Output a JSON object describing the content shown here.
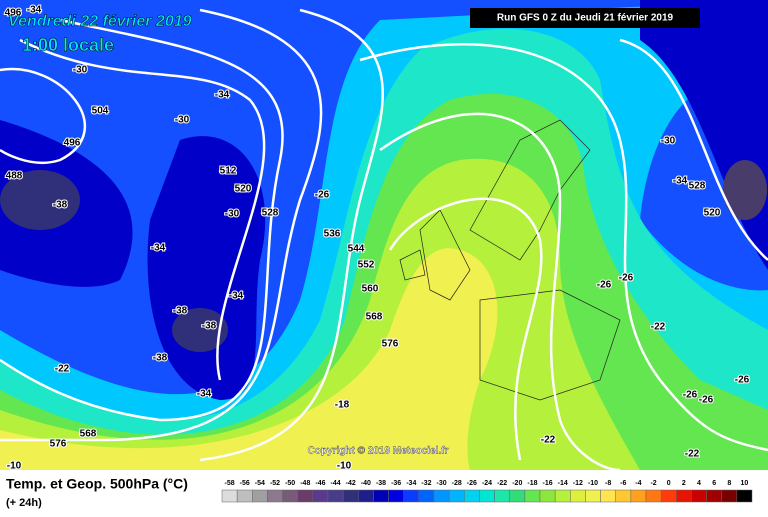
{
  "header": {
    "date": "Vendredi 22 février 2019",
    "time": "1:00 locale",
    "run": "Run GFS 0 Z du Jeudi 21 février 2019"
  },
  "footer": {
    "title": "Temp. et Geop. 500hPa (°C)",
    "lead": "(+ 24h)",
    "copyright": "Copyright © 2019 Meteociel.fr"
  },
  "map_labels": [
    "-34",
    "496",
    "-30",
    "504",
    "496",
    "488",
    "-38",
    "-34",
    "-30",
    "512",
    "520",
    "-30",
    "528",
    "-26",
    "-34",
    "536",
    "544",
    "552",
    "-34",
    "-38",
    "-38",
    "560",
    "568",
    "576",
    "-38",
    "-22",
    "-34",
    "-18",
    "568",
    "576",
    "-10",
    "-10",
    "-22",
    "-22",
    "-26",
    "-26",
    "-22",
    "-26",
    "-26",
    "-26",
    "-30",
    "-34",
    "528",
    "520"
  ],
  "scale": {
    "values": [
      -58,
      -56,
      -54,
      -52,
      -50,
      -48,
      -46,
      -44,
      -42,
      -40,
      -38,
      -36,
      -34,
      -32,
      -30,
      -28,
      -26,
      -24,
      -22,
      -20,
      -18,
      -16,
      -14,
      -12,
      -10,
      -8,
      -6,
      -4,
      -2,
      0,
      2,
      4,
      6,
      8,
      10
    ],
    "colors": [
      "#dcdcdc",
      "#bebebe",
      "#a0a0a0",
      "#8c7a8c",
      "#7a5a7a",
      "#6a3c6a",
      "#5a3a8a",
      "#483c8c",
      "#30307a",
      "#1e1e8c",
      "#0000b4",
      "#0000e0",
      "#0a3cff",
      "#0064ff",
      "#0096ff",
      "#00b4ff",
      "#00d2f0",
      "#00e6d2",
      "#1ee6aa",
      "#32dc78",
      "#64e650",
      "#8ce63c",
      "#b4f03c",
      "#dcf03c",
      "#f0f050",
      "#ffe650",
      "#ffc832",
      "#ffa01e",
      "#ff7814",
      "#ff3c0a",
      "#e61400",
      "#c80000",
      "#a00000",
      "#780000",
      "#000000"
    ]
  }
}
